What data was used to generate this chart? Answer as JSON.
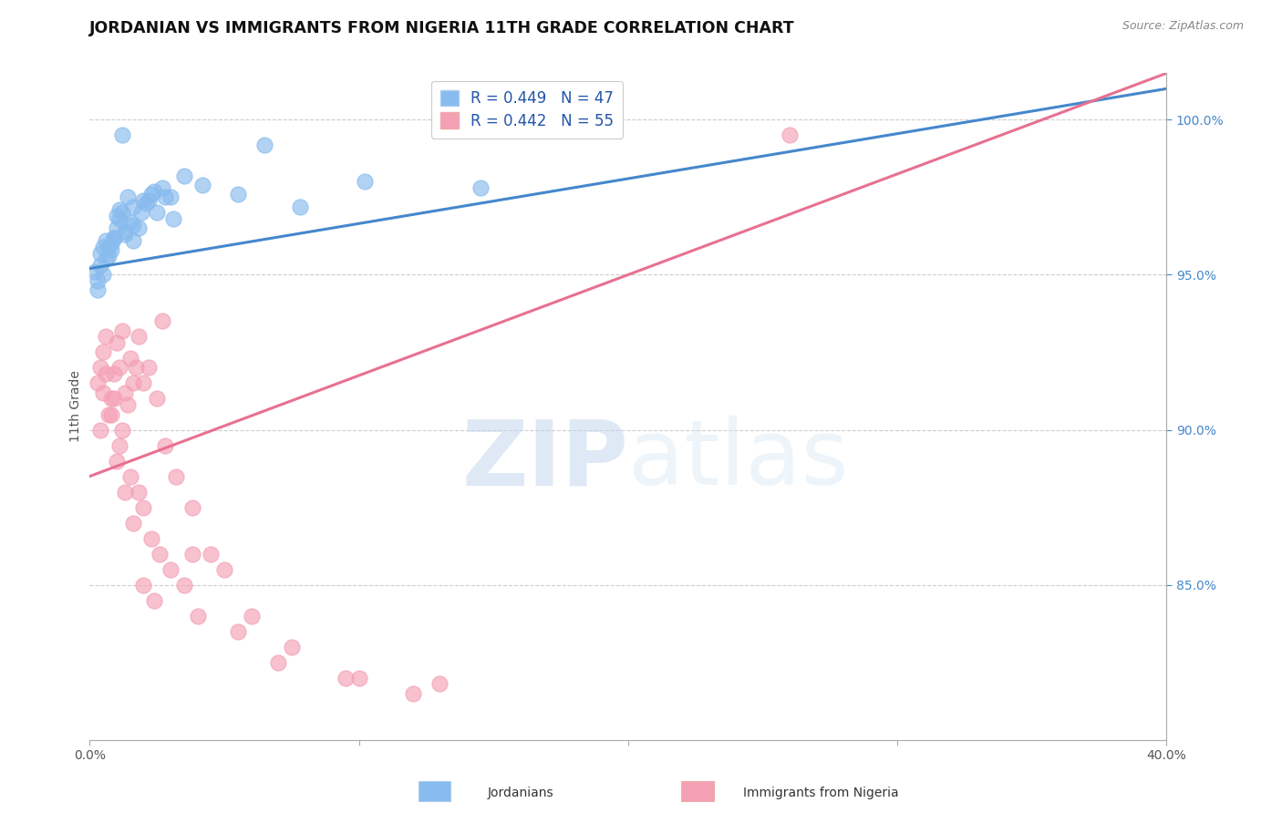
{
  "title": "JORDANIAN VS IMMIGRANTS FROM NIGERIA 11TH GRADE CORRELATION CHART",
  "source": "Source: ZipAtlas.com",
  "ylabel": "11th Grade",
  "xmin": 0.0,
  "xmax": 40.0,
  "ymin": 80.0,
  "ymax": 101.5,
  "ytick_values": [
    85.0,
    90.0,
    95.0,
    100.0
  ],
  "ytick_labels": [
    "85.0%",
    "90.0%",
    "95.0%",
    "100.0%"
  ],
  "xtick_values": [
    0.0,
    10.0,
    20.0,
    30.0,
    40.0
  ],
  "xtick_labels": [
    "0.0%",
    "",
    "",
    "",
    "40.0%"
  ],
  "blue_r": 0.449,
  "blue_n": 47,
  "pink_r": 0.442,
  "pink_n": 55,
  "blue_color": "#88bbee",
  "pink_color": "#f4a0b5",
  "blue_line_color": "#4488cc",
  "pink_line_color": "#e87090",
  "legend_label_blue": "Jordanians",
  "legend_label_pink": "Immigrants from Nigeria",
  "watermark_zip": "ZIP",
  "watermark_atlas": "atlas",
  "blue_scatter_x": [
    0.3,
    0.5,
    0.6,
    0.8,
    0.9,
    1.0,
    1.1,
    1.2,
    1.3,
    1.4,
    1.5,
    1.6,
    0.4,
    0.7,
    1.0,
    1.3,
    1.6,
    2.0,
    2.4,
    0.5,
    0.8,
    0.2,
    0.9,
    1.1,
    1.6,
    2.1,
    3.0,
    4.2,
    5.5,
    7.8,
    10.2,
    14.5,
    2.5,
    3.1,
    1.8,
    2.2,
    2.7,
    3.5,
    0.3,
    0.6,
    1.9,
    2.3,
    2.8,
    0.4,
    0.7,
    6.5,
    1.2
  ],
  "blue_scatter_y": [
    94.5,
    95.0,
    95.5,
    95.8,
    96.2,
    96.5,
    96.8,
    97.0,
    96.3,
    97.5,
    96.7,
    96.1,
    95.3,
    95.6,
    96.9,
    96.4,
    97.2,
    97.4,
    97.7,
    95.9,
    96.0,
    95.1,
    96.2,
    97.1,
    96.6,
    97.3,
    97.5,
    97.9,
    97.6,
    97.2,
    98.0,
    97.8,
    97.0,
    96.8,
    96.5,
    97.4,
    97.8,
    98.2,
    94.8,
    96.1,
    97.0,
    97.6,
    97.5,
    95.7,
    95.9,
    99.2,
    99.5
  ],
  "pink_scatter_x": [
    0.3,
    0.4,
    0.5,
    0.6,
    0.7,
    0.8,
    0.9,
    1.0,
    1.1,
    1.2,
    1.3,
    1.4,
    1.5,
    1.6,
    1.7,
    1.8,
    2.0,
    2.2,
    2.5,
    2.8,
    3.2,
    3.8,
    4.5,
    5.0,
    6.0,
    7.5,
    9.5,
    12.0,
    1.0,
    1.3,
    1.6,
    2.0,
    2.4,
    0.5,
    0.8,
    1.1,
    1.5,
    2.0,
    2.6,
    3.5,
    0.6,
    0.9,
    1.2,
    1.8,
    2.3,
    3.0,
    4.0,
    5.5,
    7.0,
    10.0,
    13.0,
    2.7,
    3.8,
    26.0,
    0.4
  ],
  "pink_scatter_y": [
    91.5,
    92.0,
    92.5,
    93.0,
    90.5,
    91.0,
    91.8,
    92.8,
    92.0,
    93.2,
    91.2,
    90.8,
    92.3,
    91.5,
    92.0,
    93.0,
    91.5,
    92.0,
    91.0,
    89.5,
    88.5,
    87.5,
    86.0,
    85.5,
    84.0,
    83.0,
    82.0,
    81.5,
    89.0,
    88.0,
    87.0,
    85.0,
    84.5,
    91.2,
    90.5,
    89.5,
    88.5,
    87.5,
    86.0,
    85.0,
    91.8,
    91.0,
    90.0,
    88.0,
    86.5,
    85.5,
    84.0,
    83.5,
    82.5,
    82.0,
    81.8,
    93.5,
    86.0,
    99.5,
    90.0
  ],
  "blue_trend_x0": 0.0,
  "blue_trend_x1": 40.0,
  "blue_trend_y0": 95.2,
  "blue_trend_y1": 101.0,
  "pink_trend_x0": 0.0,
  "pink_trend_x1": 40.0,
  "pink_trend_y0": 88.5,
  "pink_trend_y1": 101.5
}
